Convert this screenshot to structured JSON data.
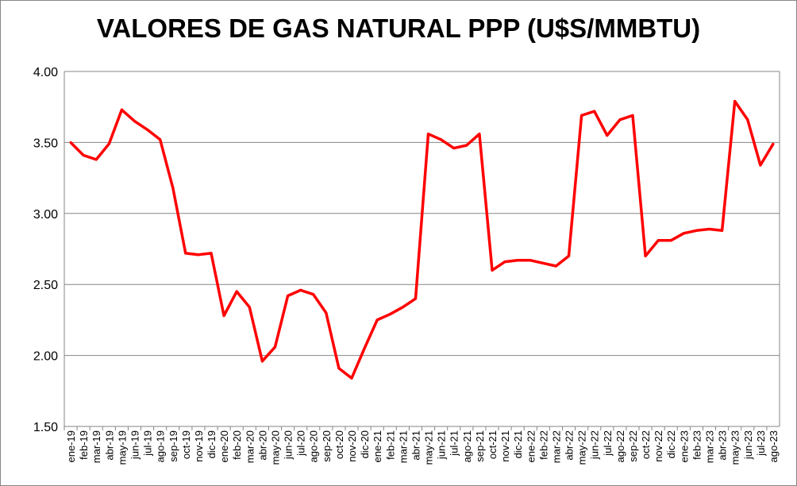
{
  "chart_data": {
    "type": "line",
    "title": "VALORES DE GAS NATURAL PPP (U$S/MMBTU)",
    "xlabel": "",
    "ylabel": "",
    "ylim": [
      1.5,
      4.0
    ],
    "yticks": [
      "1.50",
      "2.00",
      "2.50",
      "3.00",
      "3.50",
      "4.00"
    ],
    "grid": true,
    "legend": "none",
    "categories": [
      "ene-19",
      "feb-19",
      "mar-19",
      "abr-19",
      "may-19",
      "jun-19",
      "jul-19",
      "ago-19",
      "sep-19",
      "oct-19",
      "nov-19",
      "dic-19",
      "ene-20",
      "feb-20",
      "mar-20",
      "abr-20",
      "may-20",
      "jun-20",
      "jul-20",
      "ago-20",
      "sep-20",
      "oct-20",
      "nov-20",
      "dic-20",
      "ene-21",
      "feb-21",
      "mar-21",
      "abr-21",
      "may-21",
      "jun-21",
      "jul-21",
      "ago-21",
      "sep-21",
      "oct-21",
      "nov-21",
      "dic-21",
      "ene-22",
      "feb-22",
      "mar-22",
      "abr-22",
      "may-22",
      "jun-22",
      "jul-22",
      "ago-22",
      "sep-22",
      "oct-22",
      "nov-22",
      "dic-22",
      "ene-23",
      "feb-23",
      "mar-23",
      "abr-23",
      "may-23",
      "jun-23",
      "jul-23",
      "ago-23"
    ],
    "series": [
      {
        "name": "Gas natural PPP",
        "color": "#ff0000",
        "values": [
          3.5,
          3.41,
          3.38,
          3.49,
          3.73,
          3.65,
          3.59,
          3.52,
          3.18,
          2.72,
          2.71,
          2.72,
          2.28,
          2.45,
          2.34,
          1.96,
          2.06,
          2.42,
          2.46,
          2.43,
          2.3,
          1.91,
          1.84,
          2.05,
          2.25,
          2.29,
          2.34,
          2.4,
          3.56,
          3.52,
          3.46,
          3.48,
          3.56,
          2.6,
          2.66,
          2.67,
          2.67,
          2.65,
          2.63,
          2.7,
          3.69,
          3.72,
          3.55,
          3.66,
          3.69,
          2.7,
          2.81,
          2.81,
          2.86,
          2.88,
          2.89,
          2.88,
          3.79,
          3.66,
          3.34,
          3.49
        ]
      }
    ]
  }
}
